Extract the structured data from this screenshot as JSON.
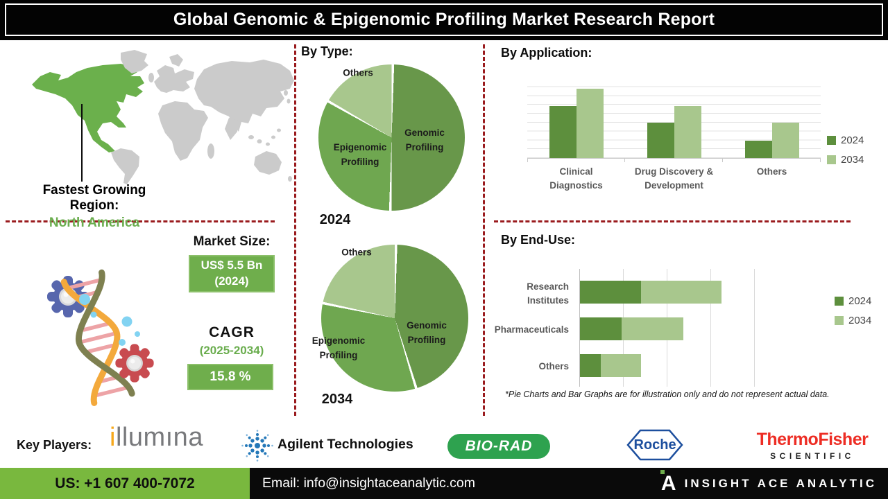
{
  "title": "Global Genomic & Epigenomic Profiling Market Research Report",
  "left_panel": {
    "region_heading": "Fastest Growing Region:",
    "region_value": "North America",
    "market_size_heading": "Market Size:",
    "market_size_value": "US$ 5.5 Bn",
    "market_size_year": "(2024)",
    "cagr_heading": "CAGR",
    "cagr_period": "(2025-2034)",
    "cagr_value": "15.8 %"
  },
  "sections": {
    "by_type": "By Type:",
    "by_application": "By Application:",
    "by_end_use": "By End-Use:"
  },
  "chart_data": [
    {
      "type": "pie",
      "year": "2024",
      "slices": [
        {
          "label": "Genomic Profiling",
          "value": 50,
          "color": "#68974a"
        },
        {
          "label": "Epigenomic Profiling",
          "value": 33,
          "color": "#6fa750"
        },
        {
          "label": "Others",
          "value": 17,
          "color": "#a8c78d"
        }
      ]
    },
    {
      "type": "pie",
      "year": "2034",
      "slices": [
        {
          "label": "Genomic Profiling",
          "value": 45,
          "color": "#68974a"
        },
        {
          "label": "Epigenomic Profiling",
          "value": 33,
          "color": "#6fa750"
        },
        {
          "label": "Others",
          "value": 22,
          "color": "#a8c78d"
        }
      ]
    },
    {
      "type": "bar",
      "title": "By Application:",
      "categories": [
        "Clinical Diagnostics",
        "Drug Discovery & Development",
        "Others"
      ],
      "series": [
        {
          "name": "2024",
          "color": "#5d8f3d",
          "values": [
            65,
            44,
            22
          ]
        },
        {
          "name": "2034",
          "color": "#a8c78d",
          "values": [
            87,
            65,
            44
          ]
        }
      ],
      "ylim": [
        0,
        100
      ],
      "grid": "horizontal",
      "legend_position": "right"
    },
    {
      "type": "stacked_bar_horizontal",
      "title": "By End-Use:",
      "categories": [
        "Research Institutes",
        "Pharmaceuticals",
        "Others"
      ],
      "series": [
        {
          "name": "2024",
          "color": "#5d8f3d",
          "values_pct": [
            35,
            24,
            12
          ]
        },
        {
          "name": "2034",
          "color": "#a8c78d",
          "values_pct": [
            46,
            35,
            23
          ]
        }
      ],
      "xlim": [
        0,
        100
      ],
      "grid": "vertical",
      "legend_position": "right"
    }
  ],
  "disclaimer": "*Pie Charts and Bar Graphs are for illustration only and do not represent actual data.",
  "key_players": {
    "heading": "Key Players:",
    "illumina_i": "i",
    "illumina_rest": "llumına",
    "agilent": "Agilent Technologies",
    "biorad": "BIO-RAD",
    "roche": "Roche",
    "thermo_line1": "ThermoFisher",
    "thermo_line2": "SCIENTIFIC"
  },
  "footer": {
    "phone": "US: +1 607 400-7072",
    "email": "Email: info@insightaceanalytic.com",
    "brand_letter": "A",
    "brand": "INSIGHT ACE ANALYTIC"
  },
  "colors": {
    "dashed_red": "#9a1b1e",
    "accent_green": "#6fae4c",
    "map_green": "#6bb04c",
    "map_gray": "#cbcbcb",
    "bar_2024": "#5d8f3d",
    "bar_2034": "#a8c78d",
    "footer_green": "#79b83e",
    "biorad_green": "#2ea24f",
    "agilent_blue": "#2478b8",
    "roche_blue": "#1d4f9e",
    "thermo_red": "#ed2d24",
    "illumina_gray": "#78797c",
    "illumina_orange": "#f6a81c",
    "label_gray": "#595959"
  }
}
